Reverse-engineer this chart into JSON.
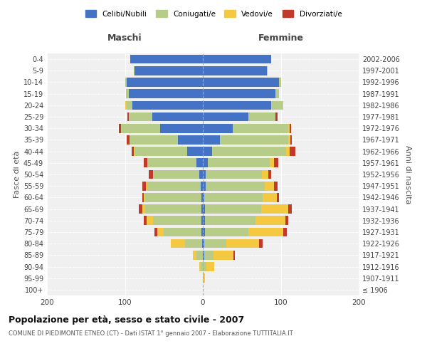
{
  "age_groups": [
    "100+",
    "95-99",
    "90-94",
    "85-89",
    "80-84",
    "75-79",
    "70-74",
    "65-69",
    "60-64",
    "55-59",
    "50-54",
    "45-49",
    "40-44",
    "35-39",
    "30-34",
    "25-29",
    "20-24",
    "15-19",
    "10-14",
    "5-9",
    "0-4"
  ],
  "birth_years": [
    "≤ 1906",
    "1907-1911",
    "1912-1916",
    "1917-1921",
    "1922-1926",
    "1927-1931",
    "1932-1936",
    "1937-1941",
    "1942-1946",
    "1947-1951",
    "1952-1956",
    "1957-1961",
    "1962-1966",
    "1967-1971",
    "1972-1976",
    "1977-1981",
    "1982-1986",
    "1987-1991",
    "1992-1996",
    "1997-2001",
    "2002-2006"
  ],
  "males": {
    "celibi": [
      0,
      0,
      0,
      0,
      1,
      2,
      2,
      2,
      2,
      3,
      5,
      8,
      20,
      32,
      55,
      65,
      90,
      95,
      98,
      88,
      93
    ],
    "coniugati": [
      0,
      0,
      3,
      8,
      22,
      48,
      62,
      72,
      72,
      68,
      58,
      62,
      68,
      62,
      50,
      30,
      8,
      4,
      2,
      1,
      0
    ],
    "vedovi": [
      0,
      0,
      2,
      5,
      18,
      8,
      8,
      4,
      2,
      2,
      1,
      1,
      1,
      0,
      0,
      0,
      2,
      0,
      0,
      0,
      0
    ],
    "divorziati": [
      0,
      0,
      0,
      0,
      0,
      4,
      4,
      4,
      2,
      5,
      5,
      5,
      2,
      4,
      3,
      2,
      0,
      0,
      0,
      0,
      0
    ]
  },
  "females": {
    "nubili": [
      0,
      0,
      0,
      2,
      2,
      3,
      3,
      3,
      2,
      4,
      4,
      6,
      12,
      22,
      38,
      58,
      88,
      93,
      98,
      82,
      88
    ],
    "coniugate": [
      0,
      1,
      5,
      12,
      28,
      55,
      65,
      72,
      75,
      75,
      72,
      80,
      95,
      88,
      72,
      35,
      14,
      5,
      2,
      1,
      0
    ],
    "vedove": [
      0,
      2,
      10,
      25,
      42,
      45,
      38,
      35,
      18,
      12,
      8,
      5,
      4,
      2,
      1,
      0,
      1,
      0,
      0,
      0,
      0
    ],
    "divorziate": [
      0,
      0,
      0,
      2,
      5,
      5,
      4,
      4,
      3,
      5,
      4,
      6,
      8,
      2,
      2,
      3,
      0,
      0,
      0,
      0,
      0
    ]
  },
  "colors": {
    "celibi": "#4472C4",
    "coniugati": "#B8CC8A",
    "vedovi": "#F5C842",
    "divorziati": "#C0392B"
  },
  "title": "Popolazione per età, sesso e stato civile - 2007",
  "subtitle": "COMUNE DI PIEDIMONTE ETNEO (CT) - Dati ISTAT 1° gennaio 2007 - Elaborazione TUTTITALIA.IT",
  "label_maschi": "Maschi",
  "label_femmine": "Femmine",
  "ylabel_left": "Fasce di età",
  "ylabel_right": "Anni di nascita",
  "xlim": 200,
  "legend_labels": [
    "Celibi/Nubili",
    "Coniugati/e",
    "Vedovi/e",
    "Divorziati/e"
  ],
  "bg_color": "#ffffff",
  "plot_bg": "#f0f0f0"
}
